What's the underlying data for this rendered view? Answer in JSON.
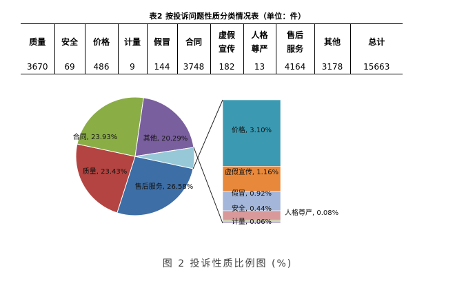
{
  "table_title": "表2 按投诉问题性质分类情况表（单位：件）",
  "table": {
    "headers": [
      "质量",
      "安全",
      "价格",
      "计量",
      "假冒",
      "合同",
      "虚假\n宣传",
      "人格\n尊严",
      "售后\n服务",
      "其他",
      "总计"
    ],
    "values": [
      "3670",
      "69",
      "486",
      "9",
      "144",
      "3748",
      "182",
      "13",
      "4164",
      "3178",
      "15663"
    ]
  },
  "chart_data": {
    "type": "pie",
    "title": "",
    "pie": {
      "slices": [
        {
          "label": "售后服务, 26.58%",
          "name": "售后服务",
          "value": 26.58,
          "color": "#3d6ea6"
        },
        {
          "label": "质量, 23.43%",
          "name": "质量",
          "value": 23.43,
          "color": "#b44441"
        },
        {
          "label": "合同, 23.93%",
          "name": "合同",
          "value": 23.93,
          "color": "#8aad46"
        },
        {
          "label": "其他, 20.29%",
          "name": "其他",
          "value": 20.29,
          "color": "#7a5f9e"
        },
        {
          "label": "",
          "name": "其余",
          "value": 5.76,
          "color": "#97c8d8"
        }
      ]
    },
    "breakdown": {
      "segments": [
        {
          "label": "价格, 3.10%",
          "name": "价格",
          "value": 3.1,
          "color": "#3b9ab2"
        },
        {
          "label": "虚假宣传, 1.16%",
          "name": "虚假宣传",
          "value": 1.16,
          "color": "#e8883a"
        },
        {
          "label": "假冒, 0.92%",
          "name": "假冒",
          "value": 0.92,
          "color": "#a4b7da"
        },
        {
          "label": "安全, 0.44%",
          "name": "安全",
          "value": 0.44,
          "color": "#d9999a"
        },
        {
          "label": "人格尊严, 0.08%",
          "name": "人格尊严",
          "value": 0.08,
          "color": "#b9c995"
        },
        {
          "label": "计量, 0.06%",
          "name": "计量",
          "value": 0.06,
          "color": "#9a8cb4"
        }
      ]
    }
  },
  "caption": "图 2 投诉性质比例图 (%)"
}
